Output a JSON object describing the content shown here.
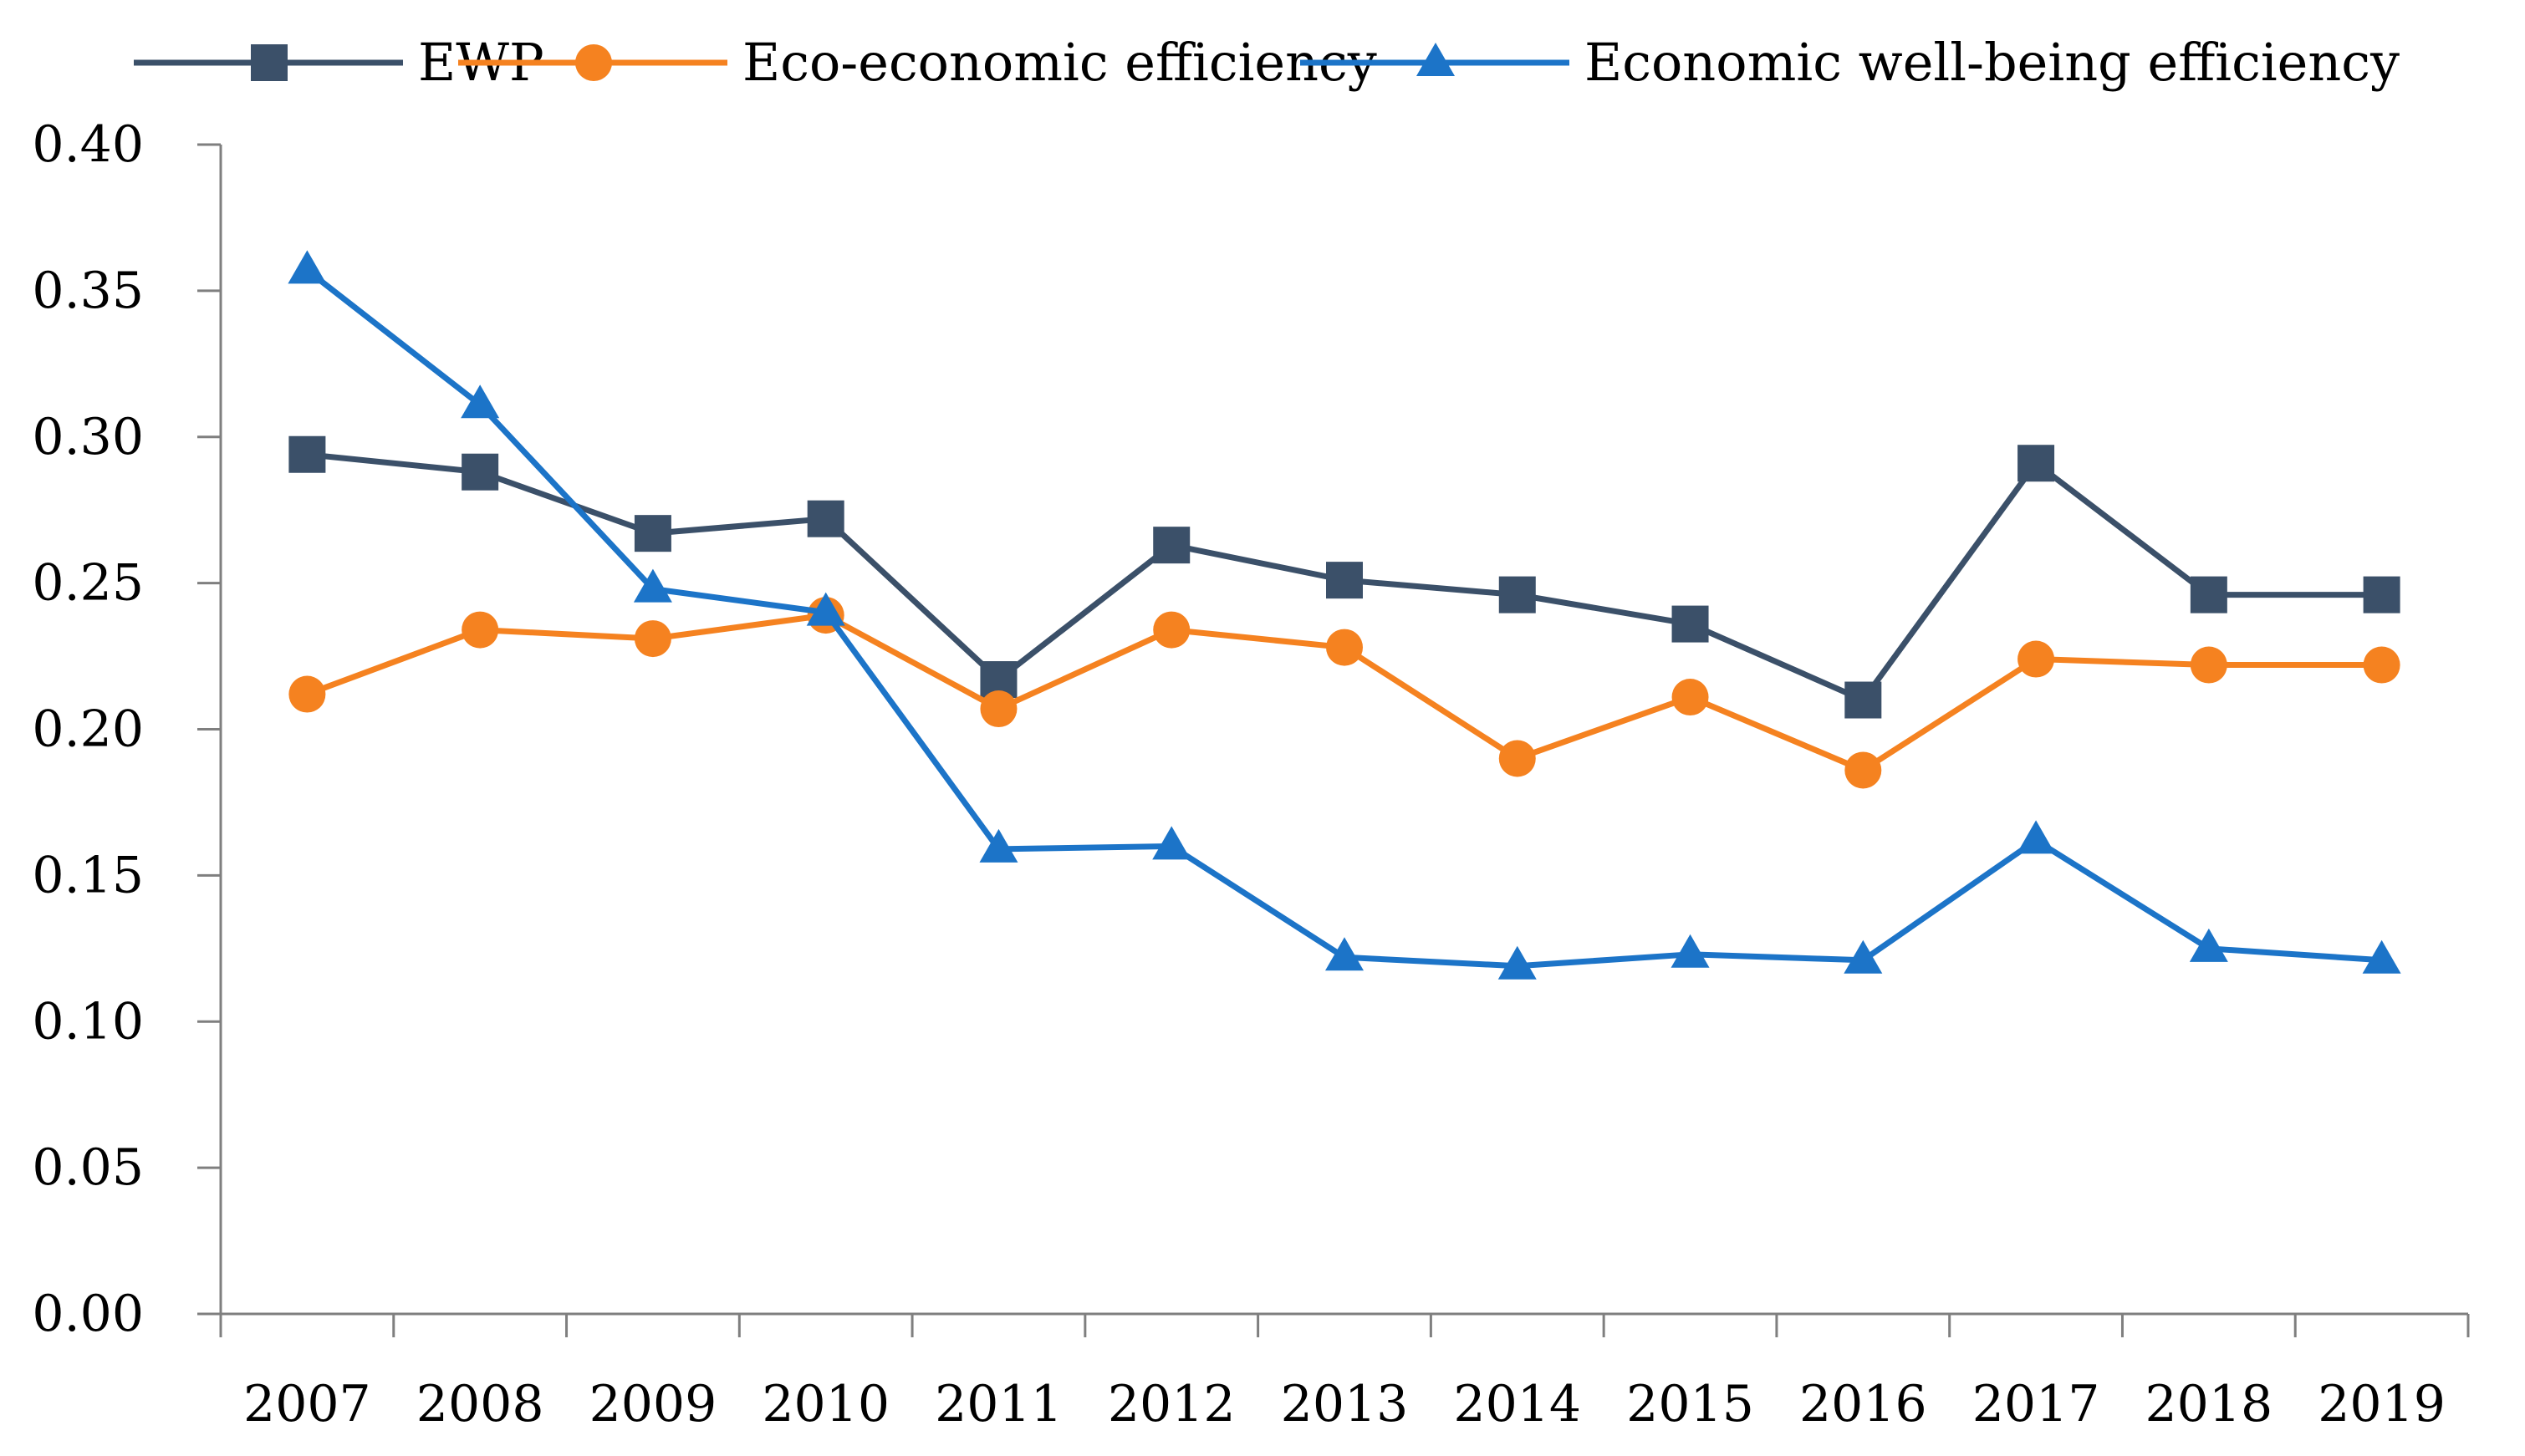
{
  "chart_data": {
    "type": "line",
    "title": "",
    "xlabel": "",
    "ylabel": "",
    "categories": [
      "2007",
      "2008",
      "2009",
      "2010",
      "2011",
      "2012",
      "2013",
      "2014",
      "2015",
      "2016",
      "2017",
      "2018",
      "2019"
    ],
    "ylim": [
      0,
      0.4
    ],
    "yticks": [
      "0.00",
      "0.05",
      "0.10",
      "0.15",
      "0.20",
      "0.25",
      "0.30",
      "0.35",
      "0.40"
    ],
    "grid": false,
    "legend_position": "top",
    "series": [
      {
        "name": "EWP",
        "color": "#3b5069",
        "marker": "square",
        "values": [
          0.294,
          0.288,
          0.267,
          0.272,
          0.217,
          0.263,
          0.251,
          0.246,
          0.236,
          0.21,
          0.291,
          0.246,
          0.246
        ]
      },
      {
        "name": "Eco-economic efficiency",
        "color": "#f58220",
        "marker": "circle",
        "values": [
          0.212,
          0.234,
          0.231,
          0.239,
          0.207,
          0.234,
          0.228,
          0.19,
          0.211,
          0.186,
          0.224,
          0.222,
          0.222
        ]
      },
      {
        "name": "Economic well-being efficiency",
        "color": "#1c74c8",
        "marker": "triangle",
        "values": [
          0.357,
          0.311,
          0.248,
          0.24,
          0.159,
          0.16,
          0.122,
          0.119,
          0.123,
          0.121,
          0.162,
          0.125,
          0.121
        ]
      }
    ]
  }
}
